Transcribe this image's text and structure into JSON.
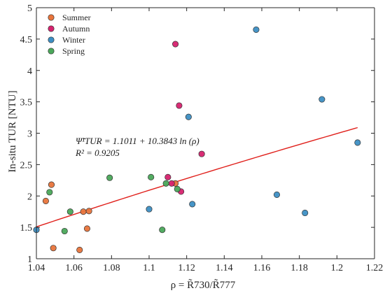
{
  "chart_data": {
    "type": "scatter",
    "xlabel": "ρ = R̃730/R̃777",
    "ylabel": "In-situ TUR [NTU]",
    "xlim": [
      1.04,
      1.22
    ],
    "ylim": [
      1,
      5
    ],
    "xticks": [
      "1.04",
      "1.06",
      "1.08",
      "1.1",
      "1.12",
      "1.14",
      "1.16",
      "1.18",
      "1.2",
      "1.22"
    ],
    "yticks": [
      "1",
      "1.5",
      "2",
      "2.5",
      "3",
      "3.5",
      "4",
      "4.5",
      "5"
    ],
    "grid": false,
    "legend_position": "top-left",
    "series": [
      {
        "name": "Summer",
        "color": "#e8743b",
        "points": [
          {
            "x": 1.045,
            "y": 1.92
          },
          {
            "x": 1.048,
            "y": 2.18
          },
          {
            "x": 1.049,
            "y": 1.17
          },
          {
            "x": 1.063,
            "y": 1.14
          },
          {
            "x": 1.065,
            "y": 1.75
          },
          {
            "x": 1.067,
            "y": 1.48
          },
          {
            "x": 1.068,
            "y": 1.76
          },
          {
            "x": 1.114,
            "y": 2.2
          }
        ]
      },
      {
        "name": "Autumn",
        "color": "#d6226e",
        "points": [
          {
            "x": 1.11,
            "y": 2.3
          },
          {
            "x": 1.112,
            "y": 2.2
          },
          {
            "x": 1.114,
            "y": 4.42
          },
          {
            "x": 1.116,
            "y": 3.44
          },
          {
            "x": 1.117,
            "y": 2.07
          },
          {
            "x": 1.128,
            "y": 2.67
          }
        ]
      },
      {
        "name": "Winter",
        "color": "#3d8fc4",
        "points": [
          {
            "x": 1.04,
            "y": 1.46
          },
          {
            "x": 1.1,
            "y": 1.79
          },
          {
            "x": 1.121,
            "y": 3.26
          },
          {
            "x": 1.123,
            "y": 1.87
          },
          {
            "x": 1.157,
            "y": 4.65
          },
          {
            "x": 1.168,
            "y": 2.02
          },
          {
            "x": 1.183,
            "y": 1.73
          },
          {
            "x": 1.192,
            "y": 3.54
          },
          {
            "x": 1.211,
            "y": 2.85
          }
        ]
      },
      {
        "name": "Spring",
        "color": "#4aa85a",
        "points": [
          {
            "x": 1.047,
            "y": 2.06
          },
          {
            "x": 1.055,
            "y": 1.44
          },
          {
            "x": 1.058,
            "y": 1.75
          },
          {
            "x": 1.079,
            "y": 2.29
          },
          {
            "x": 1.101,
            "y": 2.3
          },
          {
            "x": 1.107,
            "y": 1.46
          },
          {
            "x": 1.109,
            "y": 2.2
          },
          {
            "x": 1.115,
            "y": 2.11
          }
        ]
      }
    ],
    "fit_line": {
      "color": "#e0201b",
      "a": 1.1011,
      "b": 10.3843,
      "x_range": [
        1.04,
        1.211
      ]
    },
    "annotation": {
      "equation": "Ψ̃¹TUR = 1.1011 + 10.3843 ln (ρ)",
      "r2": "R² = 0.9205"
    }
  }
}
